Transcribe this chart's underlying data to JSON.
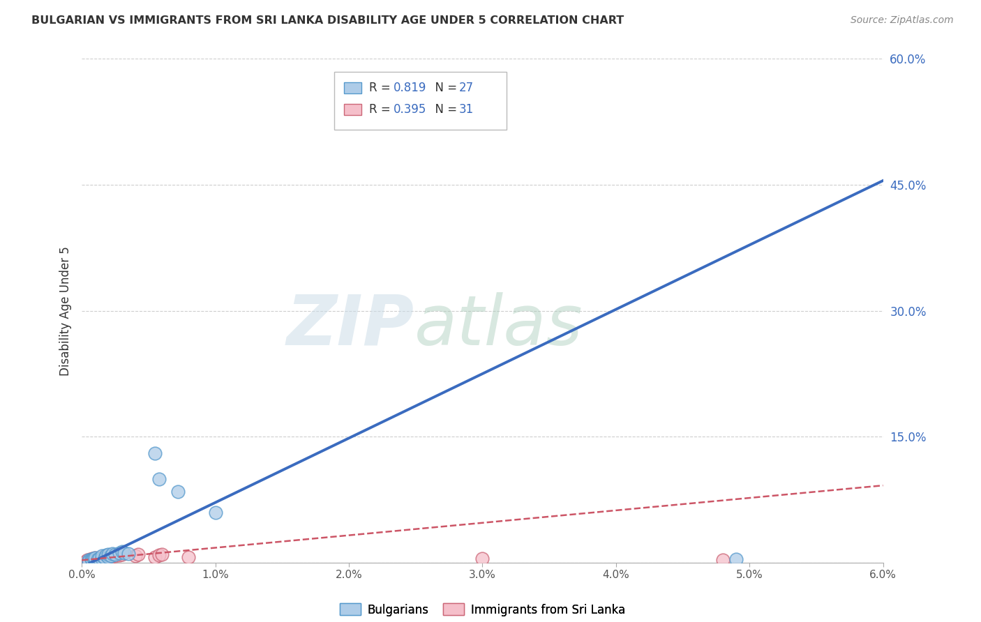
{
  "title": "BULGARIAN VS IMMIGRANTS FROM SRI LANKA DISABILITY AGE UNDER 5 CORRELATION CHART",
  "source": "Source: ZipAtlas.com",
  "ylabel": "Disability Age Under 5",
  "watermark_zip": "ZIP",
  "watermark_atlas": "atlas",
  "bg_color": "#ffffff",
  "grid_color": "#c8c8c8",
  "bulgarian_R": "0.819",
  "bulgarian_N": "27",
  "srilanka_R": "0.395",
  "srilanka_N": "31",
  "bulgarian_color": "#aecce8",
  "bulgarian_edge_color": "#5599cc",
  "bulgarian_line_color": "#3a6bbf",
  "srilanka_color": "#f5bfca",
  "srilanka_edge_color": "#cc6677",
  "srilanka_line_color": "#cc5566",
  "xmin": 0.0,
  "xmax": 0.06,
  "ymin": 0.0,
  "ymax": 0.6,
  "yticks": [
    0.0,
    0.15,
    0.3,
    0.45,
    0.6
  ],
  "ytick_labels": [
    "",
    "15.0%",
    "30.0%",
    "45.0%",
    "60.0%"
  ],
  "bulgarian_x": [
    0.0005,
    0.0005,
    0.0007,
    0.0008,
    0.0009,
    0.001,
    0.001,
    0.0012,
    0.0013,
    0.0015,
    0.0015,
    0.0017,
    0.0018,
    0.002,
    0.002,
    0.0022,
    0.0023,
    0.0025,
    0.0028,
    0.003,
    0.0032,
    0.0035,
    0.0055,
    0.0058,
    0.0072,
    0.01,
    0.049
  ],
  "bulgarian_y": [
    0.003,
    0.002,
    0.004,
    0.003,
    0.005,
    0.003,
    0.006,
    0.004,
    0.005,
    0.005,
    0.008,
    0.006,
    0.009,
    0.007,
    0.01,
    0.008,
    0.011,
    0.01,
    0.012,
    0.013,
    0.012,
    0.011,
    0.13,
    0.1,
    0.085,
    0.06,
    0.004
  ],
  "srilanka_x": [
    0.0003,
    0.0004,
    0.0005,
    0.0006,
    0.0007,
    0.0008,
    0.0009,
    0.001,
    0.001,
    0.0012,
    0.0013,
    0.0014,
    0.0015,
    0.0016,
    0.0017,
    0.0018,
    0.0019,
    0.002,
    0.0022,
    0.0023,
    0.0025,
    0.0028,
    0.003,
    0.004,
    0.0042,
    0.0055,
    0.0058,
    0.006,
    0.008,
    0.03,
    0.048
  ],
  "srilanka_y": [
    0.002,
    0.003,
    0.002,
    0.004,
    0.003,
    0.005,
    0.004,
    0.003,
    0.006,
    0.004,
    0.006,
    0.005,
    0.004,
    0.007,
    0.005,
    0.006,
    0.007,
    0.008,
    0.007,
    0.009,
    0.008,
    0.009,
    0.01,
    0.008,
    0.01,
    0.007,
    0.009,
    0.01,
    0.007,
    0.005,
    0.003
  ],
  "bulgarian_trend_x": [
    0.0,
    0.06
  ],
  "bulgarian_trend_y": [
    -0.005,
    0.455
  ],
  "srilanka_trend_x": [
    0.0,
    0.06
  ],
  "srilanka_trend_y": [
    0.003,
    0.092
  ]
}
